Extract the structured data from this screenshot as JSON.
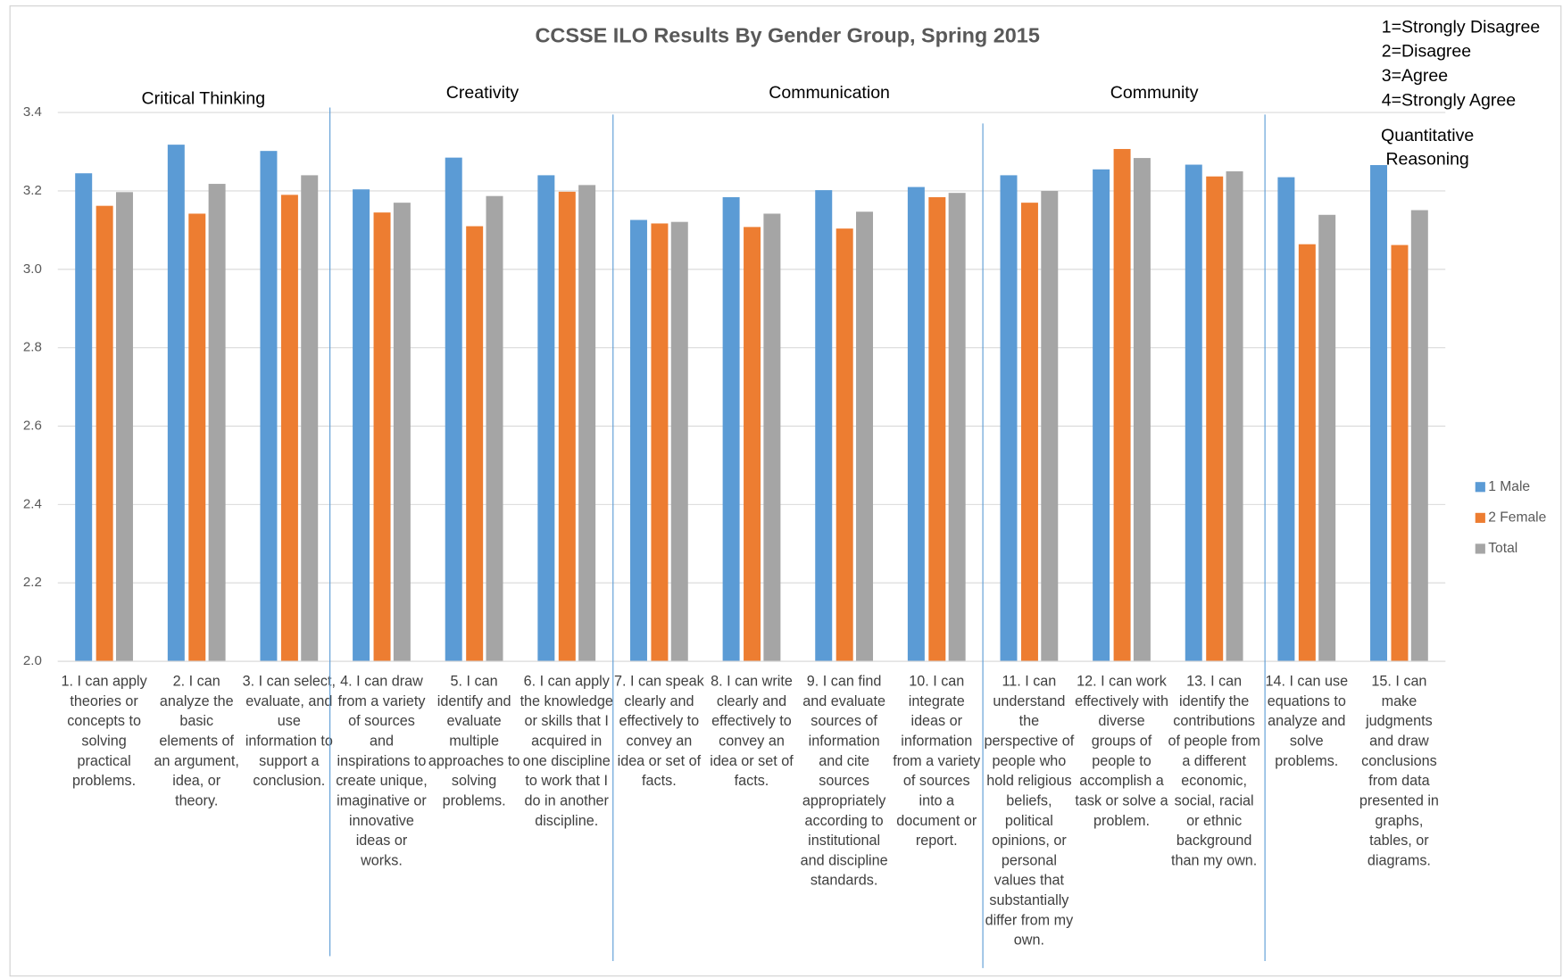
{
  "chart_data": {
    "type": "bar",
    "title": "CCSSE ILO Results By Gender Group, Spring 2015",
    "categories": [
      "1. I can apply theories or concepts to solving practical problems.",
      "2. I can analyze the basic elements of an argument, idea, or theory.",
      "3. I can select, evaluate, and use information to support a conclusion.",
      "4. I can draw from a variety of sources and inspirations to create unique, imaginative or innovative ideas or works.",
      "5. I can identify and evaluate multiple approaches to solving problems.",
      "6. I can apply the knowledge or skills that I acquired in one discipline to work that I do in another discipline.",
      "7. I can speak clearly and effectively to convey an idea or set of facts.",
      "8. I can write clearly and effectively to convey an idea or set of facts.",
      "9. I can find and evaluate sources of information and cite sources appropriately according to institutional and discipline standards.",
      "10. I can integrate ideas or information from a variety of sources into a document or report.",
      "11. I can understand the perspective of people who hold religious beliefs, political opinions, or personal values that substantially differ from my own.",
      "12. I can work effectively with diverse groups of people to accomplish a task or solve a problem.",
      "13. I can identify the contributions of people from a different economic, social, racial or ethnic background than my own.",
      "14. I can use equations to analyze and solve problems.",
      "15. I can make judgments and draw conclusions from data presented in graphs, tables, or diagrams."
    ],
    "series": [
      {
        "name": "1 Male",
        "color": "#5b9bd5",
        "values": [
          3.245,
          3.318,
          3.302,
          3.204,
          3.285,
          3.24,
          3.126,
          3.184,
          3.202,
          3.21,
          3.24,
          3.255,
          3.267,
          3.235,
          3.266
        ]
      },
      {
        "name": "2 Female",
        "color": "#ed7d31",
        "values": [
          3.162,
          3.142,
          3.19,
          3.145,
          3.11,
          3.198,
          3.117,
          3.108,
          3.104,
          3.184,
          3.17,
          3.307,
          3.237,
          3.064,
          3.062
        ]
      },
      {
        "name": "Total",
        "color": "#a5a5a5",
        "values": [
          3.197,
          3.218,
          3.24,
          3.17,
          3.187,
          3.215,
          3.121,
          3.142,
          3.147,
          3.195,
          3.2,
          3.284,
          3.25,
          3.139,
          3.151
        ]
      }
    ],
    "ylim": [
      2.0,
      3.4
    ],
    "yticks": [
      {
        "value": 2,
        "label": "2.0"
      },
      2.2,
      2.4,
      2.6,
      2.8,
      {
        "value": 3,
        "label": "3.0"
      },
      3.2,
      3.4
    ],
    "grid": true,
    "legend": "right",
    "groups": [
      "Critical Thinking",
      "Creativity",
      "Communication",
      "Community",
      "Quantitative Reasoning"
    ],
    "scale_notes": [
      "1=Strongly Disagree",
      "2=Disagree",
      "3=Agree",
      "4=Strongly Agree"
    ]
  }
}
